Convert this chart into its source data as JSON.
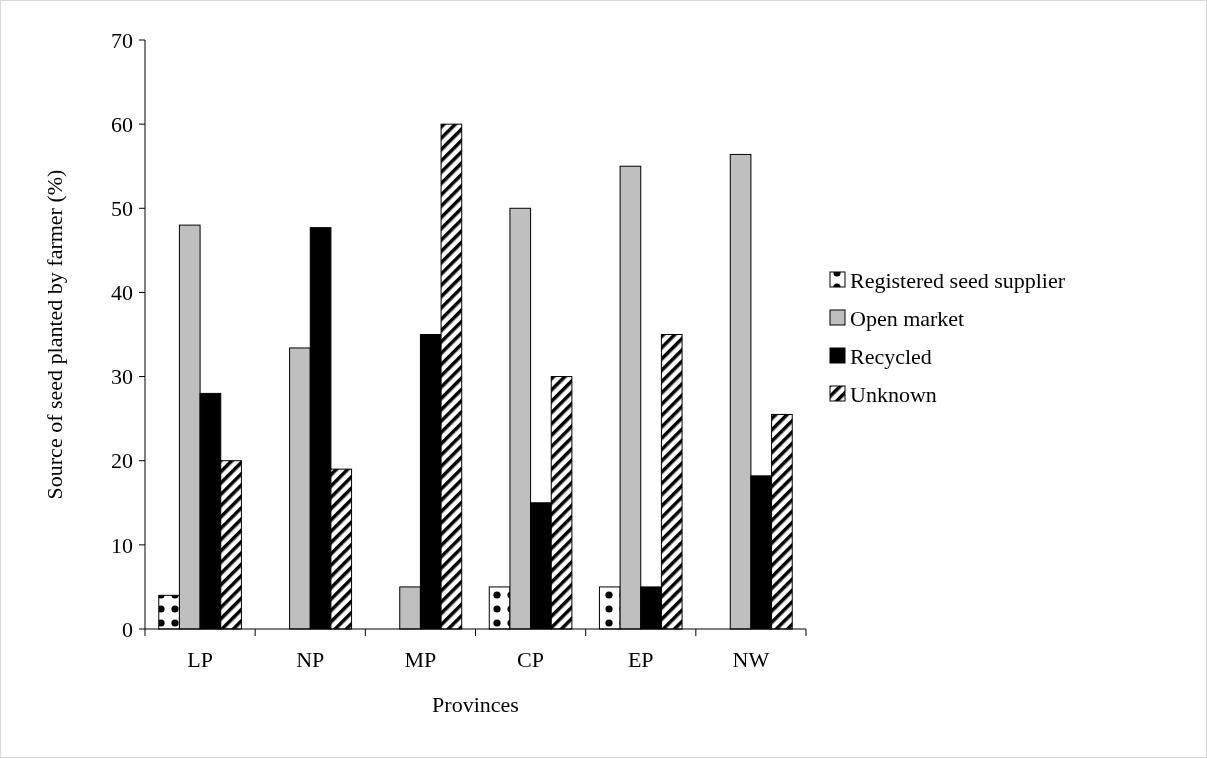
{
  "chart_data": {
    "type": "bar",
    "xlabel": "Provinces",
    "ylabel": "Source of seed planted by farmer (%)",
    "categories": [
      "LP",
      "NP",
      "MP",
      "CP",
      "EP",
      "NW"
    ],
    "series": [
      {
        "name": "Registered seed supplier",
        "color": "#000000",
        "values": [
          4,
          0,
          0,
          5,
          5,
          0
        ]
      },
      {
        "name": "Open market",
        "color": "#bfbfbf",
        "values": [
          48,
          33.4,
          5,
          50,
          55,
          56.4
        ]
      },
      {
        "name": "Recycled",
        "color": "#000000",
        "values": [
          28,
          47.7,
          35,
          15,
          5,
          18.2
        ]
      },
      {
        "name": "Unknown",
        "color": "#000000",
        "values": [
          20,
          19,
          60,
          30,
          35,
          25.5
        ]
      }
    ],
    "ylim": [
      0,
      70
    ],
    "yticks": [
      0,
      10,
      20,
      30,
      40,
      50,
      60,
      70
    ],
    "grid": false,
    "legend": "right"
  }
}
